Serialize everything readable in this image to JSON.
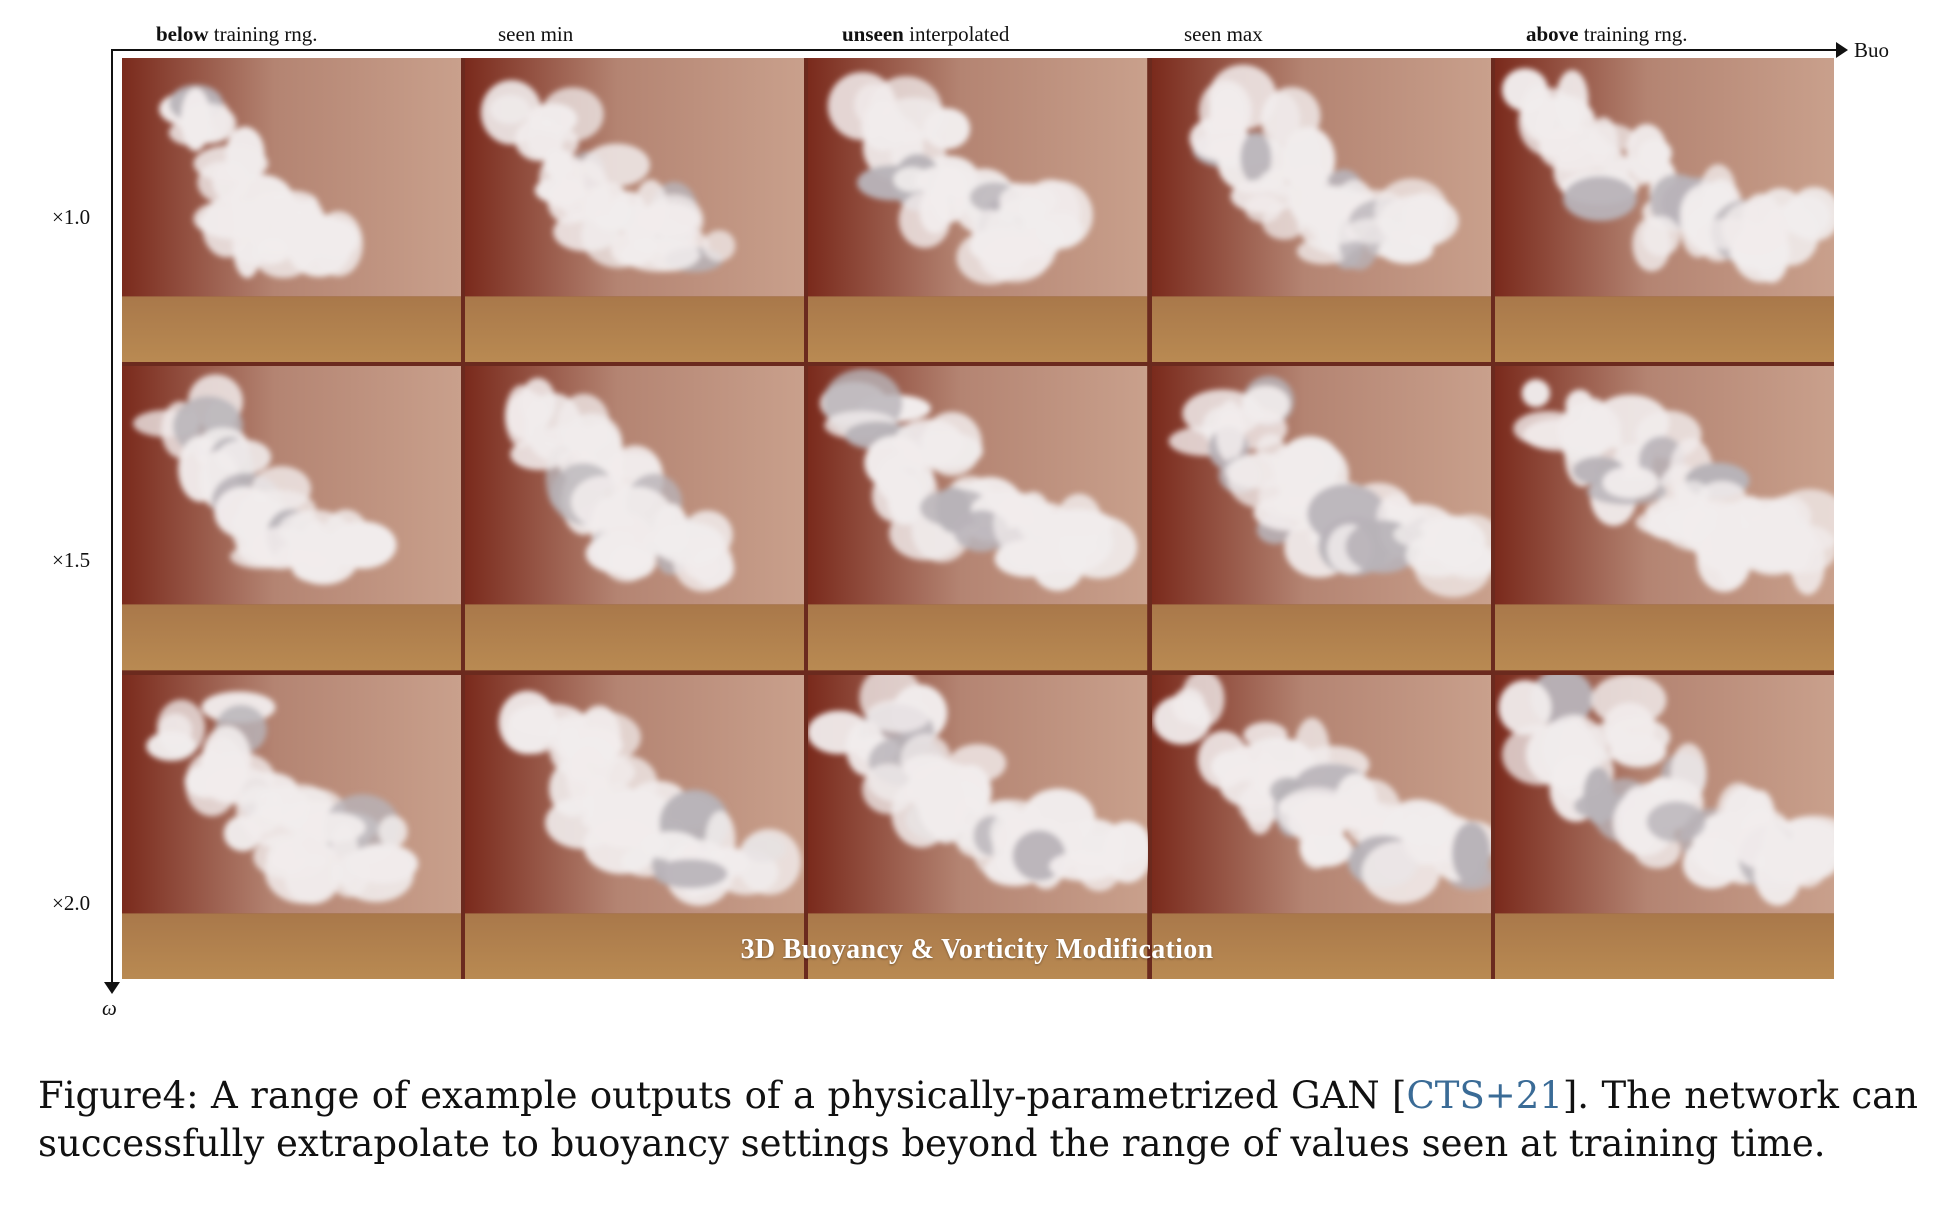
{
  "figure": {
    "columns": [
      {
        "bold": "below",
        "rest": " training rng."
      },
      {
        "bold": "",
        "rest": "seen min"
      },
      {
        "bold": "unseen",
        "rest": " interpolated"
      },
      {
        "bold": "",
        "rest": "seen max"
      },
      {
        "bold": "above",
        "rest": " training rng."
      }
    ],
    "x_axis_label": "Buo",
    "y_axis_label": "ω",
    "rows": [
      "×1.0",
      "×1.5",
      "×2.0"
    ],
    "overlay_title": "3D Buoyancy & Vorticity Modification",
    "colors": {
      "wall_dark": "#7a2a1c",
      "wall_light": "#c9a08c",
      "floor": "#b98a52",
      "smoke": "#f1ecec"
    }
  },
  "caption": {
    "label": "Figure4:",
    "text_before": "A range of example outputs of a physically-parametrized GAN [",
    "citation": "CTS+21",
    "text_after": "]. The network can successfully extrapolate to buoyancy settings beyond the range of values seen at training time."
  }
}
